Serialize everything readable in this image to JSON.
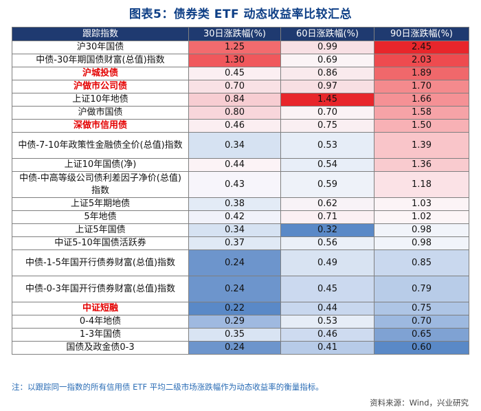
{
  "title": "图表5：债券类 ETF 动态收益率比较汇总",
  "headers": [
    "跟踪指数",
    "30日涨跌幅(%)",
    "60日涨跌幅(%)",
    "90日涨跌幅(%)"
  ],
  "rows": [
    {
      "name": "沪30年国债",
      "highlight": false,
      "v30": "1.25",
      "v60": "0.99",
      "v90": "2.45",
      "bg30": "#f26b6e",
      "bg60": "#f8e0e4",
      "bg90": "#e8262b"
    },
    {
      "name": "中债-30年期国债财富(总值)指数",
      "highlight": false,
      "v30": "1.30",
      "v60": "0.69",
      "v90": "2.03",
      "bg30": "#f0585c",
      "bg60": "#fbf4f6",
      "bg90": "#ee4b4f"
    },
    {
      "name": "沪城投债",
      "highlight": true,
      "v30": "0.45",
      "v60": "0.86",
      "v90": "1.89",
      "bg30": "#fbeff2",
      "bg60": "#f9eaed",
      "bg90": "#f0686b"
    },
    {
      "name": "沪做市公司债",
      "highlight": true,
      "v30": "0.70",
      "v60": "0.97",
      "v90": "1.70",
      "bg30": "#f9e1e5",
      "bg60": "#f8dfe3",
      "bg90": "#f48a8d"
    },
    {
      "name": "上证10年地债",
      "highlight": false,
      "v30": "0.84",
      "v60": "1.45",
      "v90": "1.66",
      "bg30": "#f7cdd2",
      "bg60": "#e8262b",
      "bg90": "#f59195"
    },
    {
      "name": "沪做市国债",
      "highlight": false,
      "v30": "0.80",
      "v60": "0.70",
      "v90": "1.58",
      "bg30": "#f8d6db",
      "bg60": "#fbf3f5",
      "bg90": "#f6a3a7"
    },
    {
      "name": "深做市信用债",
      "highlight": true,
      "v30": "0.46",
      "v60": "0.75",
      "v90": "1.50",
      "bg30": "#fbeef1",
      "bg60": "#faeff2",
      "bg90": "#f8b1b5"
    },
    {
      "name": "中债-7-10年政策性金融债全价(总值)指数",
      "highlight": false,
      "v30": "0.34",
      "v60": "0.53",
      "v90": "1.39",
      "bg30": "#d6e2f2",
      "bg60": "#e6edf7",
      "bg90": "#f9c5c9"
    },
    {
      "name": "上证10年国债(净)",
      "highlight": false,
      "v30": "0.44",
      "v60": "0.54",
      "v90": "1.36",
      "bg30": "#fcf3f6",
      "bg60": "#e8eef8",
      "bg90": "#f9cbcf"
    },
    {
      "name": "中债-中高等级公司债利差因子净价(总值)指数",
      "highlight": false,
      "v30": "0.43",
      "v60": "0.59",
      "v90": "1.18",
      "bg30": "#f7f5fb",
      "bg60": "#eef2f9",
      "bg90": "#fbe2e6"
    },
    {
      "name": "上证5年期地债",
      "highlight": false,
      "v30": "0.38",
      "v60": "0.62",
      "v90": "1.03",
      "bg30": "#e3ebf6",
      "bg60": "#f8f3f7",
      "bg90": "#fcf4f6"
    },
    {
      "name": "5年地债",
      "highlight": false,
      "v30": "0.42",
      "v60": "0.71",
      "v90": "1.02",
      "bg30": "#f1f2fa",
      "bg60": "#fbf0f3",
      "bg90": "#fcf5f7"
    },
    {
      "name": "上证5年国债",
      "highlight": false,
      "v30": "0.34",
      "v60": "0.32",
      "v90": "0.98",
      "bg30": "#d6e2f2",
      "bg60": "#5a89c7",
      "bg90": "#f1f4fa"
    },
    {
      "name": "中证5-10年国债活跃券",
      "highlight": false,
      "v30": "0.37",
      "v60": "0.56",
      "v90": "0.98",
      "bg30": "#e0e9f5",
      "bg60": "#ebf0f8",
      "bg90": "#f1f4fa"
    },
    {
      "name": "中债-1-5年国开行债券财富(总值)指数",
      "highlight": false,
      "v30": "0.24",
      "v60": "0.49",
      "v90": "0.85",
      "bg30": "#6d95cc",
      "bg60": "#d8e3f2",
      "bg90": "#c9d8ee"
    },
    {
      "name": "中债-0-3年国开行债券财富(总值)指数",
      "highlight": false,
      "v30": "0.24",
      "v60": "0.45",
      "v90": "0.79",
      "bg30": "#6d95cc",
      "bg60": "#cbd9ef",
      "bg90": "#b8cce8"
    },
    {
      "name": "中证短融",
      "highlight": true,
      "v30": "0.22",
      "v60": "0.44",
      "v90": "0.75",
      "bg30": "#5a89c7",
      "bg60": "#c8d7ee",
      "bg90": "#aec5e5"
    },
    {
      "name": "0-4年地债",
      "highlight": false,
      "v30": "0.29",
      "v60": "0.53",
      "v90": "0.70",
      "bg30": "#9fb9e0",
      "bg60": "#e6edf7",
      "bg90": "#9db9e0"
    },
    {
      "name": "1-3年国债",
      "highlight": false,
      "v30": "0.35",
      "v60": "0.46",
      "v90": "0.65",
      "bg30": "#d9e4f3",
      "bg60": "#cedbf0",
      "bg90": "#7fa2d3"
    },
    {
      "name": "国债及政金债0-3",
      "highlight": false,
      "v30": "0.24",
      "v60": "0.41",
      "v90": "0.60",
      "bg30": "#6d95cc",
      "bg60": "#b7cbe8",
      "bg90": "#5a89c7"
    }
  ],
  "note": "注：以跟踪同一指数的所有信用债 ETF 平均二级市场涨跌幅作为动态收益率的衡量指标。",
  "source": "资料来源：Wind，兴业研究"
}
